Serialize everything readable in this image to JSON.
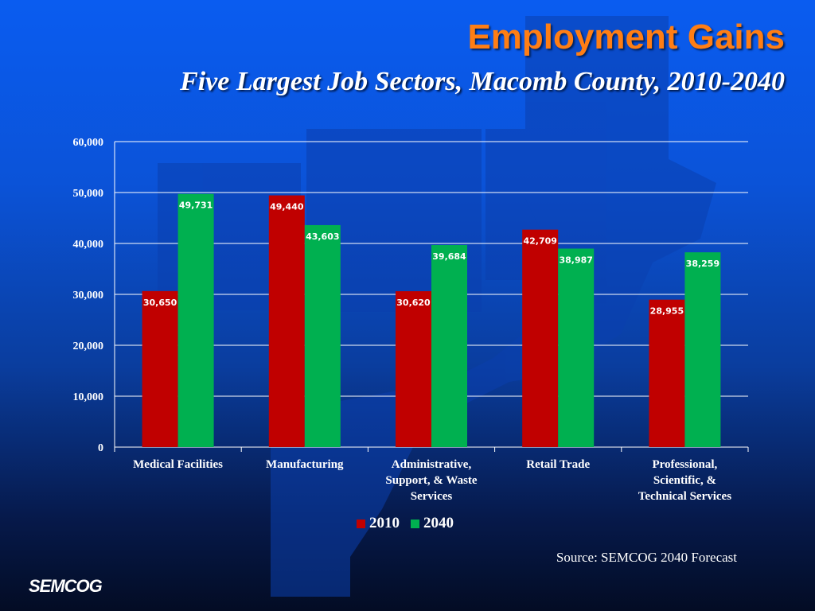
{
  "title": "Employment Gains",
  "subtitle": "Five Largest Job Sectors, Macomb County, 2010-2040",
  "source": "Source: SEMCOG 2040 Forecast",
  "logo": "SEMCOG",
  "colors": {
    "2010": "#c00000",
    "2040": "#00b050",
    "title": "#ff7e14",
    "background": "#0b53d8"
  },
  "chart_data": {
    "type": "bar",
    "categories": [
      "Medical Facilities",
      "Manufacturing",
      "Administrative, Support, & Waste Services",
      "Retail Trade",
      "Professional, Scientific, & Technical Services"
    ],
    "category_lines": [
      [
        "Medical Facilities"
      ],
      [
        "Manufacturing"
      ],
      [
        "Administrative,",
        "Support, & Waste",
        "Services"
      ],
      [
        "Retail Trade"
      ],
      [
        "Professional,",
        "Scientific, &",
        "Technical Services"
      ]
    ],
    "series": [
      {
        "name": "2010",
        "values": [
          30650,
          49440,
          30620,
          42709,
          28955
        ],
        "labels": [
          "30,650",
          "49,440",
          "30,620",
          "42,709",
          "28,955"
        ]
      },
      {
        "name": "2040",
        "values": [
          49731,
          43603,
          39684,
          38987,
          38259
        ],
        "labels": [
          "49,731",
          "43,603",
          "39,684",
          "38,987",
          "38,259"
        ]
      }
    ],
    "yticks": [
      "0",
      "10,000",
      "20,000",
      "30,000",
      "40,000",
      "50,000",
      "60,000"
    ],
    "ylim": [
      0,
      60000
    ],
    "grid": true,
    "legend": "bottom"
  }
}
